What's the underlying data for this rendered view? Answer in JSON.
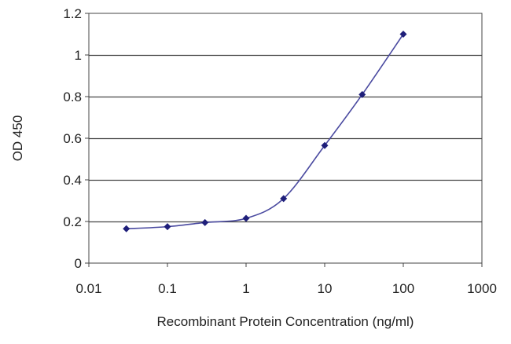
{
  "chart_data": {
    "type": "line",
    "x_scale": "log",
    "xlabel": "Recombinant Protein Concentration (ng/ml)",
    "ylabel": "OD 450",
    "xlim": [
      0.01,
      1000
    ],
    "ylim": [
      0,
      1.2
    ],
    "x_ticks": [
      0.01,
      0.1,
      1,
      10,
      100,
      1000
    ],
    "x_tick_labels": [
      "0.01",
      "0.1",
      "1",
      "10",
      "100",
      "1000"
    ],
    "y_ticks": [
      0,
      0.2,
      0.4,
      0.6,
      0.8,
      1,
      1.2
    ],
    "y_tick_labels": [
      "0",
      "0.2",
      "0.4",
      "0.6",
      "0.8",
      "1",
      "1.2"
    ],
    "grid": "horizontal",
    "series": [
      {
        "color": "#4a4aa0",
        "marker_color": "#1f1f7a",
        "x": [
          0.03,
          0.1,
          0.3,
          1,
          3,
          10,
          30,
          100
        ],
        "y": [
          0.165,
          0.175,
          0.195,
          0.215,
          0.31,
          0.565,
          0.81,
          1.1
        ]
      }
    ]
  }
}
